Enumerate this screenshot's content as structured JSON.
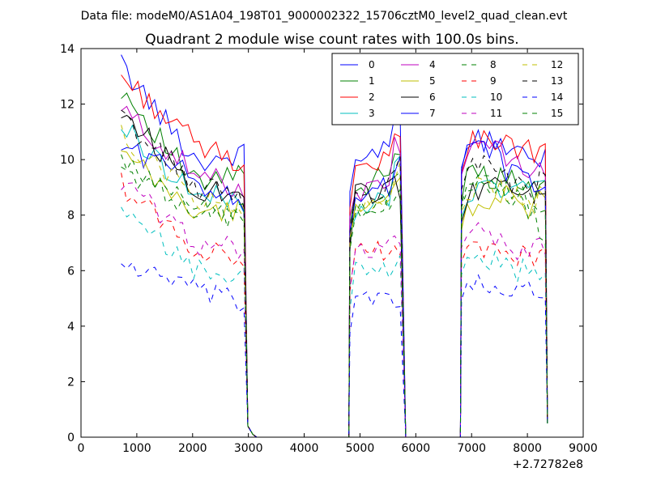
{
  "suptitle": "Data file: modeM0/AS1A04_198T01_9000002322_15706cztM0_level2_quad_clean.evt",
  "chart_data": {
    "type": "line",
    "title": "Quadrant 2 module wise count rates with 100.0s bins.",
    "xlabel": "",
    "ylabel": "",
    "xlim": [
      0,
      9000
    ],
    "ylim": [
      0,
      14
    ],
    "x_offset_label": "+2.72782e8",
    "xticks": [
      0,
      1000,
      2000,
      3000,
      4000,
      5000,
      6000,
      7000,
      8000,
      9000
    ],
    "yticks": [
      0,
      2,
      4,
      6,
      8,
      10,
      12,
      14
    ],
    "grid": false,
    "legend_position": "top-right",
    "legend_columns": 4,
    "segments": [
      {
        "start": 720,
        "end": 2920
      },
      {
        "start": 4820,
        "end": 5720
      },
      {
        "start": 6820,
        "end": 8320
      }
    ],
    "gap_points": [
      [
        2990,
        0.4
      ],
      [
        3080,
        0.1
      ],
      [
        3150,
        0.0
      ],
      [
        4800,
        0.0
      ]
    ],
    "gap_points_2": [
      [
        5820,
        0.0
      ],
      [
        6800,
        0.0
      ]
    ],
    "end_point": [
      8360,
      0.5
    ],
    "series": [
      {
        "name": "0",
        "color": "#0000ff",
        "dash": "solid",
        "levels": [
          13.4,
          9.9,
          10.2,
          11.8,
          9.7,
          10.8,
          10.4,
          9.7,
          10.0
        ]
      },
      {
        "name": "1",
        "color": "#008000",
        "dash": "solid",
        "levels": [
          12.6,
          9.0,
          9.6,
          10.2,
          9.0,
          9.4,
          9.4,
          8.7,
          9.2
        ]
      },
      {
        "name": "2",
        "color": "#ff0000",
        "dash": "solid",
        "levels": [
          13.0,
          10.5,
          9.9,
          11.0,
          9.8,
          10.6,
          10.7,
          10.0,
          10.3
        ]
      },
      {
        "name": "3",
        "color": "#00bfbf",
        "dash": "solid",
        "levels": [
          11.2,
          8.7,
          8.5,
          9.9,
          8.1,
          8.8,
          9.2,
          8.6,
          9.0
        ]
      },
      {
        "name": "4",
        "color": "#bf00bf",
        "dash": "solid",
        "levels": [
          11.8,
          9.4,
          9.0,
          10.6,
          8.7,
          10.5,
          10.1,
          9.3,
          9.6
        ]
      },
      {
        "name": "5",
        "color": "#bfbf00",
        "dash": "solid",
        "levels": [
          10.2,
          8.0,
          8.2,
          9.3,
          7.9,
          8.3,
          8.7,
          7.9,
          8.6
        ]
      },
      {
        "name": "6",
        "color": "#000000",
        "dash": "solid",
        "levels": [
          11.8,
          8.9,
          8.9,
          9.0,
          8.7,
          8.6,
          9.4,
          8.6,
          9.0
        ]
      },
      {
        "name": "7",
        "color": "#0000ff",
        "dash": "solid",
        "levels": [
          10.5,
          9.3,
          8.4,
          9.9,
          8.6,
          10.7,
          9.6,
          8.8,
          9.1
        ]
      },
      {
        "name": "8",
        "color": "#008000",
        "dash": "dashed",
        "levels": [
          9.7,
          8.2,
          7.8,
          9.4,
          8.0,
          9.3,
          8.7,
          8.0,
          7.4
        ]
      },
      {
        "name": "9",
        "color": "#ff0000",
        "dash": "dashed",
        "levels": [
          9.1,
          6.7,
          6.5,
          7.0,
          6.7,
          7.0,
          6.6,
          6.4,
          6.7
        ]
      },
      {
        "name": "10",
        "color": "#00bfbf",
        "dash": "dashed",
        "levels": [
          8.0,
          6.0,
          5.8,
          6.1,
          5.9,
          6.5,
          6.1,
          5.9,
          5.7
        ]
      },
      {
        "name": "11",
        "color": "#bf00bf",
        "dash": "dashed",
        "levels": [
          9.2,
          7.0,
          6.8,
          7.1,
          6.8,
          7.6,
          6.9,
          6.6,
          6.9
        ]
      },
      {
        "name": "12",
        "color": "#bfbf00",
        "dash": "dashed",
        "levels": [
          10.8,
          8.6,
          8.3,
          9.6,
          8.4,
          9.0,
          8.9,
          8.3,
          8.6
        ]
      },
      {
        "name": "13",
        "color": "#000000",
        "dash": "dashed",
        "levels": [
          11.5,
          9.0,
          8.7,
          9.8,
          8.6,
          9.9,
          9.4,
          8.6,
          9.2
        ]
      },
      {
        "name": "14",
        "color": "#0000ff",
        "dash": "dashed",
        "levels": [
          6.3,
          5.2,
          4.8,
          5.0,
          4.8,
          5.5,
          5.3,
          5.1,
          4.7
        ]
      },
      {
        "name": "15",
        "color": "#008000",
        "dash": "dashed",
        "levels": [
          9.8,
          8.4,
          8.0,
          9.0,
          8.2,
          9.2,
          8.8,
          8.3,
          8.4
        ]
      }
    ]
  }
}
